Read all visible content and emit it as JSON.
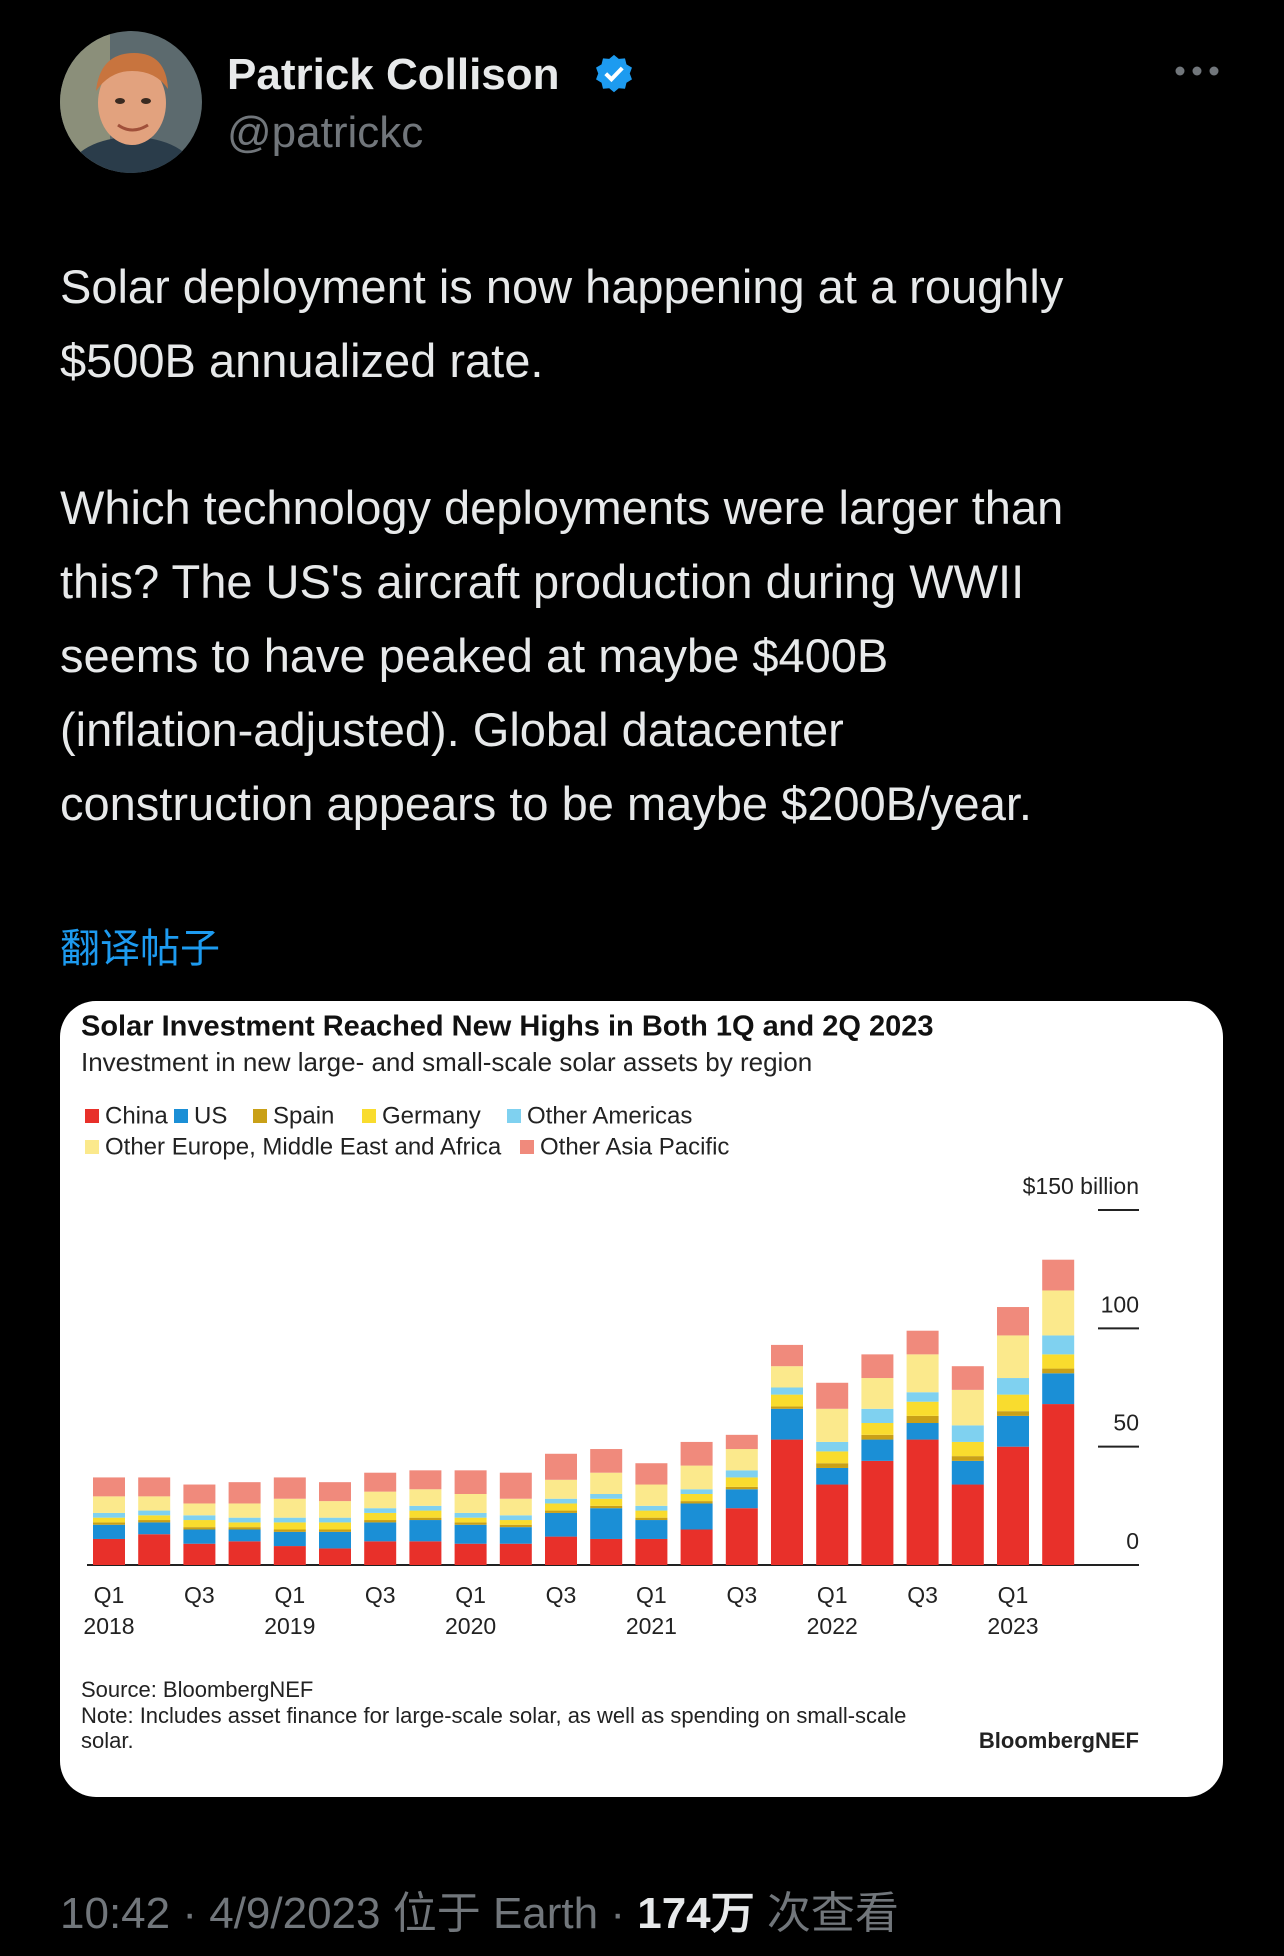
{
  "tweet": {
    "author_name": "Patrick Collison",
    "handle": "@patrickc",
    "paragraphs": [
      [
        "Solar deployment is now happening at a roughly",
        "$500B annualized rate."
      ],
      [
        "Which technology deployments were larger than",
        "this? The US's aircraft production during WWII",
        "seems to have peaked at maybe $400B",
        "(inflation-adjusted). Global datacenter",
        "construction appears to be maybe $200B/year."
      ]
    ],
    "translate": "翻译帖子",
    "time": "10:42",
    "date": "4/9/2023",
    "location": "位于 Earth",
    "views": "174万",
    "views_label": "次查看"
  },
  "chart_data": {
    "type": "stacked-bar",
    "title": "Solar Investment Reached New Highs in Both 1Q and 2Q 2023",
    "subtitle": "Investment in new large- and small-scale solar assets by region",
    "categories": [
      "Q1",
      null,
      "Q3",
      null,
      "Q1",
      null,
      "Q3",
      null,
      "Q1",
      null,
      "Q3",
      null,
      "Q1",
      null,
      "Q3",
      null,
      "Q1",
      null,
      "Q3",
      null,
      "Q1",
      null
    ],
    "years": [
      "2018",
      null,
      null,
      null,
      "2019",
      null,
      null,
      null,
      "2020",
      null,
      null,
      null,
      "2021",
      null,
      null,
      null,
      "2022",
      null,
      null,
      null,
      "2023",
      null
    ],
    "series": [
      {
        "name": "China",
        "color": "#e8302a",
        "values": [
          11,
          13,
          9,
          10,
          8,
          7,
          10,
          10,
          9,
          9,
          12,
          11,
          11,
          15,
          24,
          53,
          34,
          44,
          53,
          34,
          50,
          68
        ]
      },
      {
        "name": "US",
        "color": "#1b8fd6",
        "values": [
          6,
          5,
          6,
          5,
          6,
          7,
          8,
          9,
          8,
          7,
          10,
          13,
          8,
          11,
          8,
          13,
          7,
          9,
          7,
          10,
          13,
          13
        ]
      },
      {
        "name": "Spain",
        "color": "#c9a017",
        "values": [
          1,
          1,
          1,
          1,
          1,
          1,
          1,
          1,
          1,
          1,
          1,
          1,
          1,
          1,
          1,
          1,
          2,
          2,
          3,
          2,
          2,
          2
        ]
      },
      {
        "name": "Germany",
        "color": "#f9dc2e",
        "values": [
          2,
          2,
          3,
          2,
          3,
          3,
          3,
          3,
          2,
          2,
          3,
          3,
          3,
          3,
          4,
          5,
          5,
          5,
          6,
          6,
          7,
          6
        ]
      },
      {
        "name": "Other Americas",
        "color": "#7fd1f0",
        "values": [
          2,
          2,
          2,
          2,
          2,
          2,
          2,
          2,
          2,
          2,
          2,
          2,
          2,
          2,
          3,
          3,
          4,
          6,
          4,
          7,
          7,
          8
        ]
      },
      {
        "name": "Other Europe, Middle East and Africa",
        "color": "#fbe98c",
        "values": [
          7,
          6,
          5,
          6,
          8,
          7,
          7,
          7,
          8,
          7,
          8,
          9,
          9,
          10,
          9,
          9,
          14,
          13,
          16,
          15,
          18,
          19
        ]
      },
      {
        "name": "Other Asia Pacific",
        "color": "#f08a7c",
        "values": [
          8,
          8,
          8,
          9,
          9,
          8,
          8,
          8,
          10,
          11,
          11,
          10,
          9,
          10,
          6,
          9,
          11,
          10,
          10,
          10,
          12,
          13
        ]
      }
    ],
    "ylim": [
      0,
      150
    ],
    "yticks": [
      0,
      50,
      100,
      {
        "value": 150,
        "label": "$150 billion"
      }
    ],
    "source": "Source: BloombergNEF",
    "note": [
      "Note: Includes asset finance for large-scale solar, as well as spending on small-scale",
      "solar."
    ],
    "brand": "BloombergNEF"
  }
}
